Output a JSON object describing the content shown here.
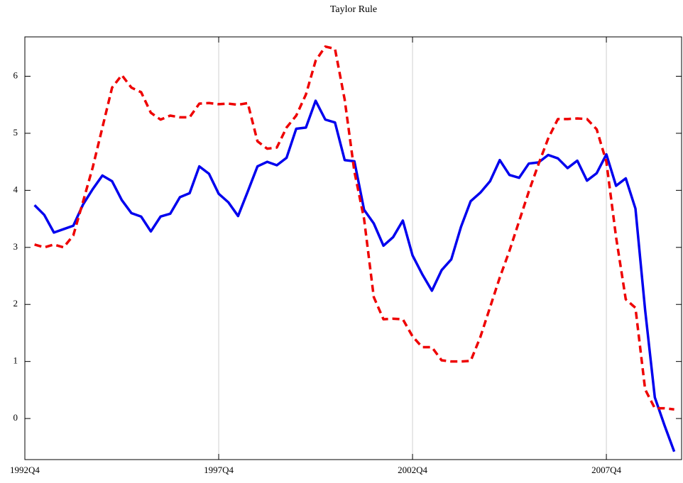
{
  "chart_data": {
    "type": "line",
    "title": "Taylor Rule",
    "x": [
      1993,
      1993.25,
      1993.5,
      1993.75,
      1994,
      1994.25,
      1994.5,
      1994.75,
      1995,
      1995.25,
      1995.5,
      1995.75,
      1996,
      1996.25,
      1996.5,
      1996.75,
      1997,
      1997.25,
      1997.5,
      1997.75,
      1998,
      1998.25,
      1998.5,
      1998.75,
      1999,
      1999.25,
      1999.5,
      1999.75,
      2000,
      2000.25,
      2000.5,
      2000.75,
      2001,
      2001.25,
      2001.5,
      2001.75,
      2002,
      2002.25,
      2002.5,
      2002.75,
      2003,
      2003.25,
      2003.5,
      2003.75,
      2004,
      2004.25,
      2004.5,
      2004.75,
      2005,
      2005.25,
      2005.5,
      2005.75,
      2006,
      2006.25,
      2006.5,
      2006.75,
      2007,
      2007.25,
      2007.5,
      2007.75,
      2008,
      2008.25,
      2008.5,
      2008.75,
      2009,
      2009.25,
      2009.5
    ],
    "series": [
      {
        "color": "#0000ee",
        "dashed": false,
        "values": [
          3.74,
          3.57,
          3.26,
          3.32,
          3.38,
          3.75,
          4.02,
          4.26,
          4.16,
          3.83,
          3.6,
          3.54,
          3.28,
          3.54,
          3.59,
          3.88,
          3.95,
          4.42,
          4.29,
          3.94,
          3.79,
          3.55,
          3.98,
          4.42,
          4.5,
          4.44,
          4.57,
          5.08,
          5.1,
          5.57,
          5.24,
          5.19,
          4.53,
          4.51,
          3.66,
          3.42,
          3.03,
          3.18,
          3.47,
          2.86,
          2.53,
          2.24,
          2.6,
          2.79,
          3.36,
          3.81,
          3.96,
          4.16,
          4.53,
          4.27,
          4.22,
          4.47,
          4.49,
          4.62,
          4.56,
          4.39,
          4.52,
          4.17,
          4.3,
          4.63,
          4.08,
          4.21,
          3.68,
          1.9,
          0.37,
          -0.12,
          -0.58
        ]
      },
      {
        "color": "#ee0000",
        "dashed": true,
        "values": [
          3.05,
          3.0,
          3.05,
          3.0,
          3.21,
          3.8,
          4.4,
          5.1,
          5.8,
          6.02,
          5.8,
          5.72,
          5.36,
          5.24,
          5.31,
          5.28,
          5.28,
          5.52,
          5.53,
          5.51,
          5.52,
          5.5,
          5.53,
          4.86,
          4.73,
          4.75,
          5.1,
          5.31,
          5.68,
          6.27,
          6.52,
          6.48,
          5.59,
          4.33,
          3.5,
          2.13,
          1.74,
          1.75,
          1.74,
          1.44,
          1.25,
          1.25,
          1.02,
          1.0,
          1.0,
          1.01,
          1.43,
          1.95,
          2.47,
          2.94,
          3.46,
          3.98,
          4.46,
          4.91,
          5.25,
          5.25,
          5.26,
          5.25,
          5.07,
          4.5,
          3.18,
          2.09,
          1.94,
          0.51,
          0.18,
          0.18,
          0.16
        ]
      }
    ],
    "xlim": [
      1992.75,
      2009.69
    ],
    "xticks": [
      {
        "value": 1992.75,
        "label": "1992Q4"
      },
      {
        "value": 1997.75,
        "label": "1997Q4"
      },
      {
        "value": 2002.75,
        "label": "2002Q4"
      },
      {
        "value": 2007.75,
        "label": "2007Q4"
      }
    ],
    "ylim": [
      -0.72,
      6.69
    ],
    "yticks": [
      0,
      1,
      2,
      3,
      4,
      5,
      6
    ],
    "grid": true
  }
}
